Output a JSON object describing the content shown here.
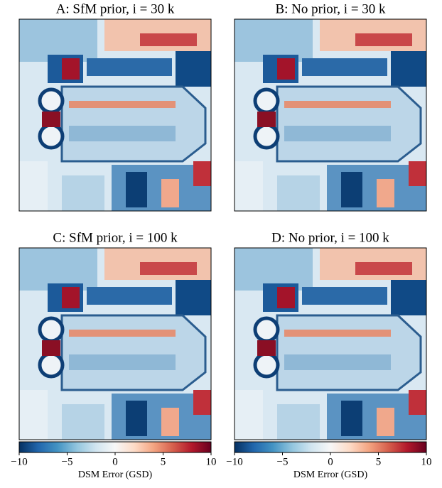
{
  "panels": [
    {
      "title": "A: SfM prior, i = 30 k"
    },
    {
      "title": "B: No prior, i = 30 k"
    },
    {
      "title": "C: SfM prior, i = 100 k"
    },
    {
      "title": "D: No prior, i = 100 k"
    }
  ],
  "colorbars": [
    {
      "label": "DSM Error (GSD)",
      "lim": [
        -10,
        10
      ],
      "ticks": [
        {
          "value": -10,
          "label": "−10"
        },
        {
          "value": -5,
          "label": "−5"
        },
        0,
        5,
        10
      ],
      "colormap": [
        "#053061",
        "#2166ac",
        "#4393c3",
        "#92c5de",
        "#d1e5f0",
        "#f7f7f7",
        "#fddbc7",
        "#f4a582",
        "#d6604d",
        "#b2182b",
        "#67001f"
      ]
    },
    {
      "label": "DSM Error (GSD)",
      "lim": [
        -10,
        10
      ],
      "ticks": [
        {
          "value": -10,
          "label": "−10"
        },
        {
          "value": -5,
          "label": "−5"
        },
        0,
        5,
        10
      ],
      "colormap": [
        "#053061",
        "#2166ac",
        "#4393c3",
        "#92c5de",
        "#d1e5f0",
        "#f7f7f7",
        "#fddbc7",
        "#f4a582",
        "#d6604d",
        "#b2182b",
        "#67001f"
      ]
    }
  ]
}
